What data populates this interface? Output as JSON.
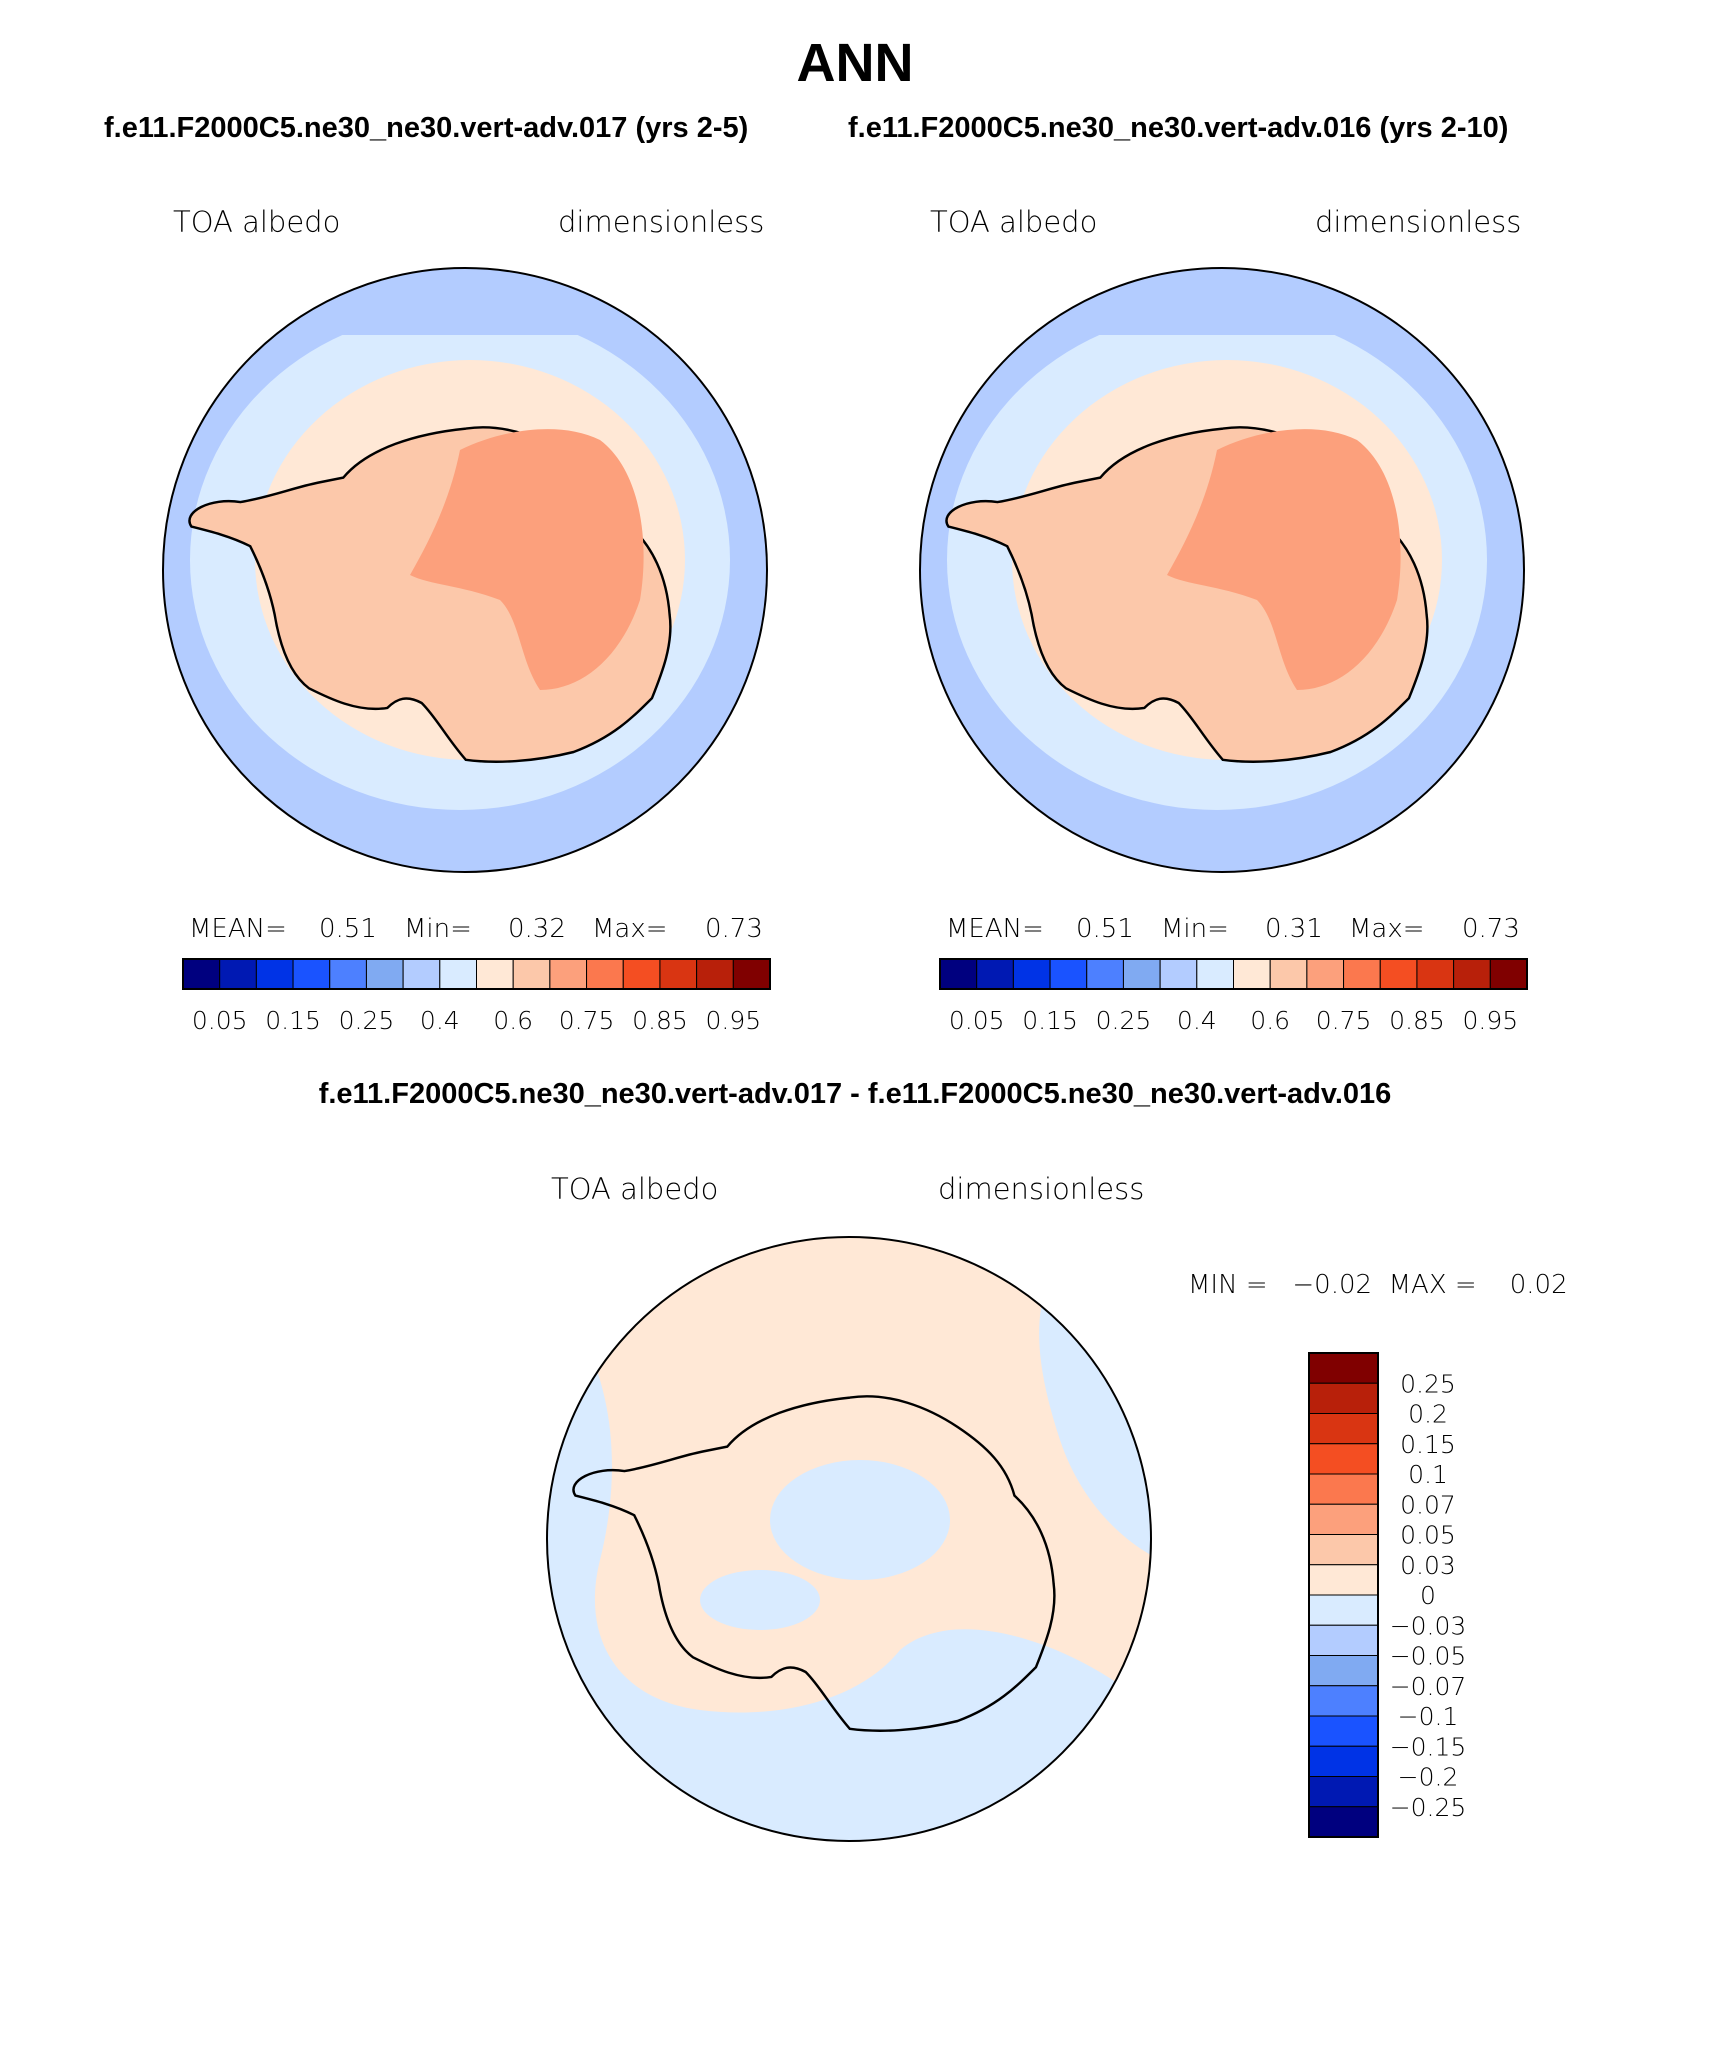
{
  "title": "ANN",
  "panels": [
    {
      "case_title": "f.e11.F2000C5.ne30_ne30.vert-adv.017 (yrs 2-5)",
      "variable": "TOA albedo",
      "units": "dimensionless",
      "stats": {
        "mean_label": "MEAN=",
        "mean": "0.51",
        "min_label": "Min=",
        "min": "0.32",
        "max_label": "Max=",
        "max": "0.73"
      }
    },
    {
      "case_title": "f.e11.F2000C5.ne30_ne30.vert-adv.016 (yrs 2-10)",
      "variable": "TOA albedo",
      "units": "dimensionless",
      "stats": {
        "mean_label": "MEAN=",
        "mean": "0.51",
        "min_label": "Min=",
        "min": "0.31",
        "max_label": "Max=",
        "max": "0.73"
      }
    }
  ],
  "colorbar": {
    "colors": [
      "#00007f",
      "#0019b3",
      "#0033e6",
      "#1a53ff",
      "#4d80ff",
      "#80aaf2",
      "#b3ccff",
      "#d9ebff",
      "#ffe8d6",
      "#fcc8aa",
      "#fca07c",
      "#fb784e",
      "#f44e22",
      "#d93512",
      "#b8200a",
      "#800000"
    ],
    "labels": [
      "0.05",
      "0.15",
      "0.25",
      "0.4",
      "0.6",
      "0.75",
      "0.85",
      "0.95"
    ]
  },
  "difference": {
    "title": "f.e11.F2000C5.ne30_ne30.vert-adv.017 - f.e11.F2000C5.ne30_ne30.vert-adv.016",
    "variable": "TOA albedo",
    "units": "dimensionless",
    "minmax": "MIN =   −0.02  MAX =    0.02",
    "colorbar": {
      "colors": [
        "#00007f",
        "#0019b3",
        "#0033e6",
        "#1a53ff",
        "#4d80ff",
        "#80aaf2",
        "#b3ccff",
        "#d9ebff",
        "#ffe8d6",
        "#fcc8aa",
        "#fca07c",
        "#fb784e",
        "#f44e22",
        "#d93512",
        "#b8200a",
        "#800000"
      ],
      "labels": [
        "0.25",
        "0.2",
        "0.15",
        "0.1",
        "0.07",
        "0.05",
        "0.03",
        "0",
        "−0.03",
        "−0.05",
        "−0.07",
        "−0.1",
        "−0.15",
        "−0.2",
        "−0.25"
      ]
    }
  },
  "map_colors": {
    "ocean_outer": "#b3ccff",
    "ocean_inner": "#d9ebff",
    "sea_ice": "#ffe8d6",
    "coast_band": "#fcc8aa",
    "plateau": "#fca07c",
    "diff_positive": "#ffe8d6",
    "diff_negative": "#d9ebff"
  }
}
